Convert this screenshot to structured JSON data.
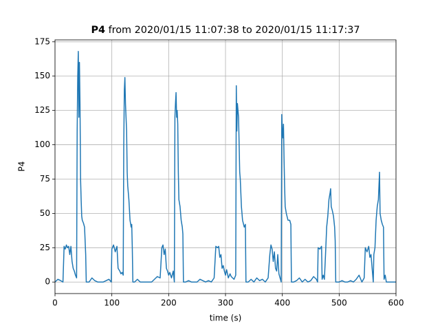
{
  "chart_data": {
    "type": "line",
    "title_bold": "P4",
    "title": "from 2020/01/15 11:07:38 to 2020/01/15 11:17:37",
    "x_label": "time (s)",
    "y_label": "P4",
    "color": "#1f77b4",
    "grid": true,
    "xlim": [
      0,
      600
    ],
    "ylim": [
      -8.4,
      176.4
    ],
    "xticks": [
      0,
      100,
      200,
      300,
      400,
      500,
      600
    ],
    "yticks": [
      0,
      25,
      50,
      75,
      100,
      125,
      150,
      175
    ],
    "x": [
      0,
      5,
      10,
      14,
      16,
      18,
      20,
      22,
      24,
      26,
      28,
      30,
      32,
      34,
      36,
      38,
      39,
      40,
      41,
      42,
      43,
      44,
      45,
      46,
      47,
      48,
      50,
      52,
      54,
      55,
      56,
      58,
      60,
      65,
      70,
      75,
      80,
      85,
      90,
      95,
      99,
      100,
      103,
      106,
      109,
      111,
      114,
      116,
      118,
      120,
      121,
      122,
      123,
      124,
      125,
      126,
      127,
      128,
      130,
      132,
      134,
      135,
      136,
      137,
      140,
      145,
      150,
      155,
      160,
      165,
      170,
      175,
      180,
      185,
      188,
      190,
      192,
      194,
      196,
      198,
      200,
      202,
      205,
      208,
      210,
      211,
      212,
      213,
      214,
      215,
      216,
      217,
      218,
      220,
      222,
      224,
      225,
      226,
      230,
      235,
      240,
      245,
      250,
      255,
      260,
      265,
      270,
      275,
      280,
      283,
      286,
      288,
      290,
      292,
      294,
      296,
      298,
      300,
      302,
      305,
      308,
      310,
      315,
      318,
      319,
      320,
      321,
      322,
      323,
      324,
      325,
      326,
      328,
      330,
      333,
      335,
      336,
      340,
      345,
      350,
      355,
      360,
      365,
      370,
      375,
      378,
      380,
      382,
      384,
      386,
      388,
      390,
      392,
      394,
      396,
      398,
      399,
      400,
      401,
      402,
      403,
      404,
      405,
      407,
      410,
      413,
      415,
      416,
      420,
      425,
      430,
      435,
      440,
      445,
      450,
      455,
      460,
      462,
      463,
      466,
      469,
      470,
      472,
      474,
      476,
      478,
      480,
      482,
      484,
      485,
      486,
      488,
      490,
      492,
      493,
      494,
      500,
      505,
      510,
      515,
      520,
      525,
      530,
      535,
      540,
      544,
      546,
      549,
      552,
      554,
      556,
      558,
      560,
      561,
      563,
      565,
      567,
      569,
      571,
      572,
      574,
      576,
      578,
      579,
      581,
      583,
      590,
      600
    ],
    "values": [
      0,
      2,
      1,
      0,
      26,
      24,
      27,
      25,
      26,
      20,
      26,
      15,
      10,
      8,
      5,
      3,
      110,
      150,
      168,
      120,
      160,
      130,
      75,
      60,
      48,
      45,
      43,
      40,
      20,
      0,
      0,
      0,
      0,
      3,
      1,
      0,
      0,
      0,
      1,
      2,
      0,
      24,
      27,
      22,
      26,
      10,
      8,
      6,
      7,
      5,
      100,
      140,
      149,
      130,
      120,
      110,
      80,
      70,
      60,
      45,
      40,
      42,
      25,
      0,
      0,
      2,
      0,
      0,
      0,
      0,
      0,
      2,
      4,
      3,
      25,
      27,
      20,
      24,
      10,
      8,
      5,
      7,
      3,
      8,
      0,
      120,
      130,
      138,
      120,
      125,
      115,
      80,
      60,
      55,
      45,
      40,
      35,
      0,
      0,
      1,
      0,
      0,
      0,
      2,
      1,
      0,
      1,
      0,
      3,
      26,
      25,
      26,
      18,
      20,
      10,
      12,
      8,
      5,
      9,
      3,
      6,
      4,
      2,
      5,
      143,
      110,
      130,
      125,
      120,
      100,
      80,
      75,
      55,
      45,
      40,
      42,
      0,
      0,
      2,
      0,
      3,
      1,
      2,
      0,
      3,
      20,
      27,
      24,
      15,
      22,
      10,
      8,
      20,
      6,
      3,
      0,
      122,
      110,
      105,
      115,
      90,
      70,
      55,
      50,
      45,
      45,
      42,
      0,
      0,
      1,
      3,
      0,
      2,
      0,
      1,
      4,
      2,
      0,
      25,
      24,
      26,
      2,
      5,
      2,
      20,
      40,
      48,
      60,
      65,
      68,
      55,
      52,
      48,
      40,
      30,
      0,
      0,
      1,
      0,
      0,
      1,
      0,
      2,
      5,
      0,
      3,
      25,
      22,
      26,
      18,
      20,
      10,
      0,
      20,
      25,
      45,
      55,
      60,
      80,
      50,
      45,
      42,
      40,
      2,
      5,
      0,
      0,
      0
    ]
  }
}
